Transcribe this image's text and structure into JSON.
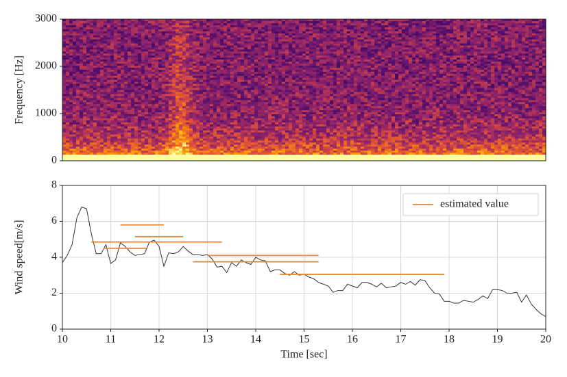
{
  "chart_data": [
    {
      "type": "spectrogram",
      "ylabel": "Frequency [Hz]",
      "xlim": [
        10,
        20
      ],
      "ylim": [
        0,
        3000
      ],
      "yticks": [
        0,
        1000,
        2000,
        3000
      ]
    },
    {
      "type": "line",
      "xlabel": "Time [sec]",
      "ylabel": "Wind speed[m/s]",
      "xlim": [
        10,
        20
      ],
      "ylim": [
        0,
        8
      ],
      "xticks": [
        10,
        11,
        12,
        13,
        14,
        15,
        16,
        17,
        18,
        19,
        20
      ],
      "yticks": [
        0,
        2,
        4,
        6,
        8
      ],
      "grid": true,
      "color": "#333333",
      "x": [
        10.0,
        10.1,
        10.2,
        10.3,
        10.4,
        10.5,
        10.6,
        10.7,
        10.8,
        10.9,
        11.0,
        11.1,
        11.2,
        11.3,
        11.4,
        11.5,
        11.6,
        11.7,
        11.8,
        11.9,
        12.0,
        12.1,
        12.2,
        12.3,
        12.4,
        12.5,
        12.6,
        12.7,
        12.8,
        12.9,
        13.0,
        13.1,
        13.2,
        13.3,
        13.4,
        13.5,
        13.6,
        13.7,
        13.8,
        13.9,
        14.0,
        14.1,
        14.2,
        14.3,
        14.4,
        14.5,
        14.6,
        14.7,
        14.8,
        14.9,
        15.0,
        15.1,
        15.2,
        15.3,
        15.4,
        15.5,
        15.6,
        15.7,
        15.8,
        15.9,
        16.0,
        16.1,
        16.2,
        16.3,
        16.4,
        16.5,
        16.6,
        16.7,
        16.8,
        16.9,
        17.0,
        17.1,
        17.2,
        17.3,
        17.4,
        17.5,
        17.6,
        17.7,
        17.8,
        17.9,
        18.0,
        18.1,
        18.2,
        18.3,
        18.4,
        18.5,
        18.6,
        18.7,
        18.8,
        18.9,
        19.0,
        19.1,
        19.2,
        19.3,
        19.4,
        19.5,
        19.6,
        19.7,
        19.8,
        19.9,
        20.0
      ],
      "values": [
        3.7,
        4.1,
        4.7,
        6.2,
        6.8,
        6.7,
        5.3,
        4.2,
        4.2,
        4.7,
        3.65,
        3.85,
        4.8,
        4.6,
        4.3,
        4.1,
        4.15,
        4.2,
        4.85,
        4.95,
        4.6,
        3.5,
        4.25,
        4.2,
        4.3,
        4.6,
        4.35,
        4.15,
        4.15,
        4.1,
        4.15,
        3.9,
        3.45,
        3.5,
        3.15,
        3.7,
        3.5,
        3.85,
        3.7,
        3.6,
        4.0,
        3.85,
        3.8,
        3.2,
        3.3,
        3.3,
        3.1,
        3.0,
        3.2,
        3.0,
        3.05,
        2.9,
        2.8,
        2.6,
        2.5,
        2.4,
        2.05,
        2.15,
        2.15,
        2.5,
        2.4,
        2.3,
        2.6,
        2.6,
        2.5,
        2.35,
        2.55,
        2.3,
        2.35,
        2.4,
        2.6,
        2.5,
        2.65,
        2.45,
        2.75,
        2.7,
        2.3,
        2.0,
        1.95,
        1.55,
        1.55,
        1.45,
        1.45,
        1.6,
        1.55,
        1.5,
        1.65,
        1.85,
        1.7,
        2.2,
        2.2,
        2.15,
        2.0,
        2.0,
        2.05,
        1.5,
        1.9,
        1.4,
        1.1,
        0.85,
        0.7
      ],
      "estimated": {
        "name": "estimated value",
        "color": "#e08a3c",
        "segments": [
          {
            "x": [
              11.2,
              12.1
            ],
            "value": 5.8
          },
          {
            "x": [
              11.5,
              12.5
            ],
            "value": 5.15
          },
          {
            "x": [
              10.6,
              13.3
            ],
            "value": 4.85
          },
          {
            "x": [
              10.85,
              11.75
            ],
            "value": 4.5
          },
          {
            "x": [
              13.0,
              15.3
            ],
            "value": 4.1
          },
          {
            "x": [
              12.7,
              15.3
            ],
            "value": 3.75
          },
          {
            "x": [
              14.5,
              17.9
            ],
            "value": 3.05
          }
        ]
      },
      "legend": "upper right"
    }
  ]
}
